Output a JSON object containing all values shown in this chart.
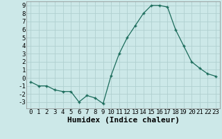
{
  "x": [
    0,
    1,
    2,
    3,
    4,
    5,
    6,
    7,
    8,
    9,
    10,
    11,
    12,
    13,
    14,
    15,
    16,
    17,
    18,
    19,
    20,
    21,
    22,
    23
  ],
  "y": [
    -0.5,
    -1.0,
    -1.0,
    -1.5,
    -1.7,
    -1.7,
    -3.0,
    -2.2,
    -2.5,
    -3.2,
    0.3,
    3.0,
    5.0,
    6.5,
    8.0,
    9.0,
    9.0,
    8.8,
    6.0,
    4.0,
    2.0,
    1.2,
    0.5,
    0.2
  ],
  "xlabel": "Humidex (Indice chaleur)",
  "ylim": [
    -3.8,
    9.5
  ],
  "xlim": [
    -0.5,
    23.5
  ],
  "yticks": [
    -3,
    -2,
    -1,
    0,
    1,
    2,
    3,
    4,
    5,
    6,
    7,
    8,
    9
  ],
  "xticks": [
    0,
    1,
    2,
    3,
    4,
    5,
    6,
    7,
    8,
    9,
    10,
    11,
    12,
    13,
    14,
    15,
    16,
    17,
    18,
    19,
    20,
    21,
    22,
    23
  ],
  "line_color": "#1a6b5a",
  "marker": "+",
  "bg_color": "#cce8e8",
  "grid_color": "#b0d0d0",
  "xlabel_fontsize": 8,
  "tick_fontsize": 6.5
}
